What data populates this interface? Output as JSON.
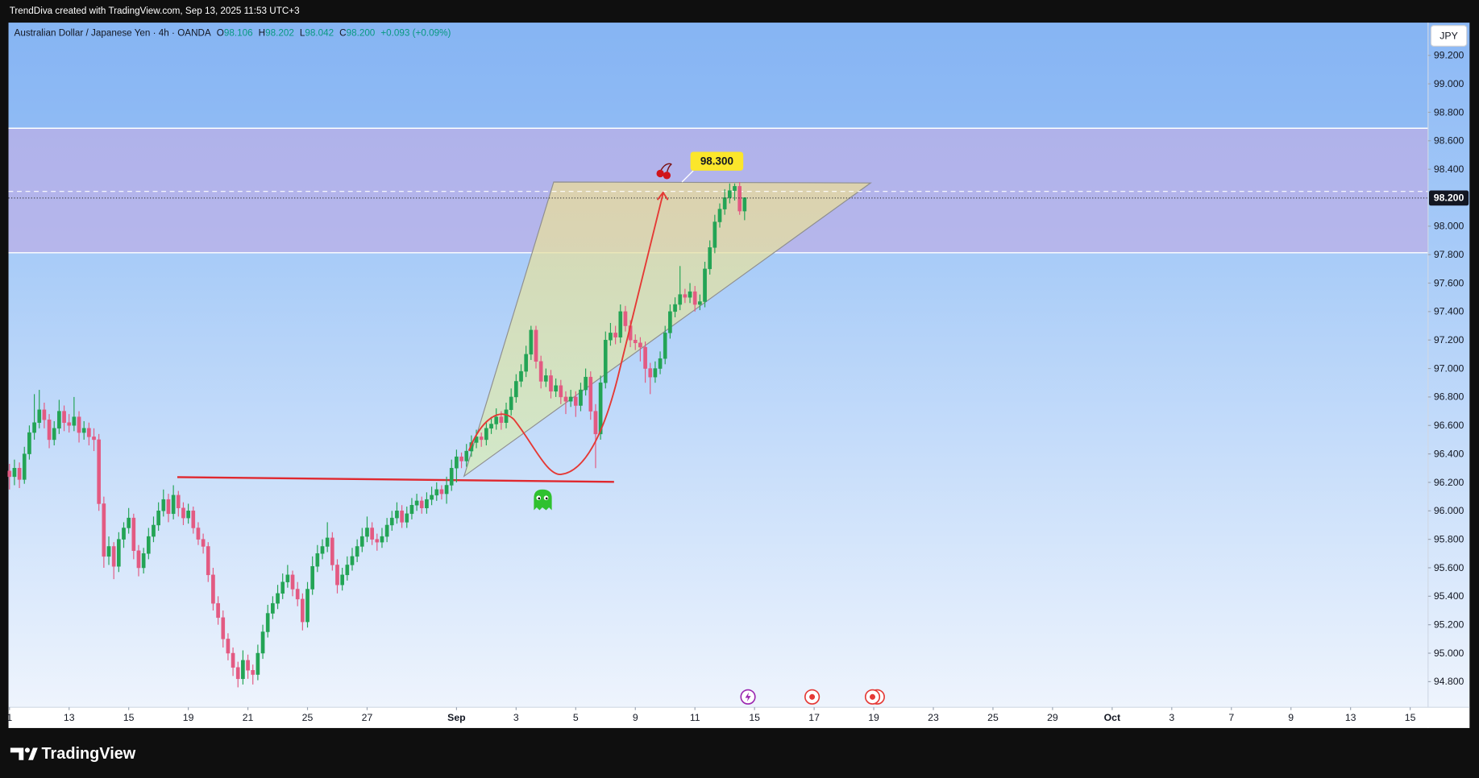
{
  "top_bar": {
    "caption": "TrendDiva created with TradingView.com, Sep 13, 2025 11:53 UTC+3"
  },
  "chart_data": {
    "type": "candlestick",
    "symbol": "Australian Dollar / Japanese Yen · 4h · OANDA",
    "legend_items": [
      {
        "key": "O",
        "value": "98.106"
      },
      {
        "key": "H",
        "value": "98.202"
      },
      {
        "key": "L",
        "value": "98.042"
      },
      {
        "key": "C",
        "value": "98.200"
      }
    ],
    "change": "+0.093 (+0.09%)",
    "currency": "JPY",
    "last_price_label": "98.200",
    "annotation_label": "98.300",
    "up_color": "#23a455",
    "down_color": "#e35a82",
    "ylim": [
      94.62,
      99.43
    ],
    "yticks": [
      {
        "value": 94.8,
        "label": "94.800"
      },
      {
        "value": 95.0,
        "label": "95.000"
      },
      {
        "value": 95.2,
        "label": "95.200"
      },
      {
        "value": 95.4,
        "label": "95.400"
      },
      {
        "value": 95.6,
        "label": "95.600"
      },
      {
        "value": 95.8,
        "label": "95.800"
      },
      {
        "value": 96.0,
        "label": "96.000"
      },
      {
        "value": 96.2,
        "label": "96.200"
      },
      {
        "value": 96.4,
        "label": "96.400"
      },
      {
        "value": 96.6,
        "label": "96.600"
      },
      {
        "value": 96.8,
        "label": "96.800"
      },
      {
        "value": 97.0,
        "label": "97.000"
      },
      {
        "value": 97.2,
        "label": "97.200"
      },
      {
        "value": 97.4,
        "label": "97.400"
      },
      {
        "value": 97.6,
        "label": "97.600"
      },
      {
        "value": 97.8,
        "label": "97.800"
      },
      {
        "value": 98.0,
        "label": "98.000"
      },
      {
        "value": 98.4,
        "label": "98.400"
      },
      {
        "value": 98.6,
        "label": "98.600"
      },
      {
        "value": 98.8,
        "label": "98.800"
      },
      {
        "value": 99.0,
        "label": "99.000"
      },
      {
        "value": 99.2,
        "label": "99.200"
      }
    ],
    "xlim": [
      -0.2,
      285.6
    ],
    "xticks": [
      {
        "value": 0,
        "label": "1"
      },
      {
        "value": 12,
        "label": "13"
      },
      {
        "value": 24,
        "label": "15"
      },
      {
        "value": 36,
        "label": "19"
      },
      {
        "value": 48,
        "label": "21"
      },
      {
        "value": 60,
        "label": "25"
      },
      {
        "value": 72,
        "label": "27"
      },
      {
        "value": 90,
        "label": "Sep"
      },
      {
        "value": 102,
        "label": "3"
      },
      {
        "value": 114,
        "label": "5"
      },
      {
        "value": 126,
        "label": "9"
      },
      {
        "value": 138,
        "label": "11"
      },
      {
        "value": 150,
        "label": "15"
      },
      {
        "value": 162,
        "label": "17"
      },
      {
        "value": 174,
        "label": "19"
      },
      {
        "value": 186,
        "label": "23"
      },
      {
        "value": 198,
        "label": "25"
      },
      {
        "value": 210,
        "label": "29"
      },
      {
        "value": 222,
        "label": "Oct"
      },
      {
        "value": 234,
        "label": "3"
      },
      {
        "value": 246,
        "label": "7"
      },
      {
        "value": 258,
        "label": "9"
      },
      {
        "value": 270,
        "label": "13"
      },
      {
        "value": 282,
        "label": "15"
      }
    ],
    "ohlc": [
      [
        96.28,
        96.33,
        96.15,
        96.24
      ],
      [
        96.24,
        96.36,
        96.18,
        96.3
      ],
      [
        96.3,
        96.34,
        96.16,
        96.22
      ],
      [
        96.22,
        96.45,
        96.19,
        96.4
      ],
      [
        96.4,
        96.6,
        96.36,
        96.55
      ],
      [
        96.55,
        96.82,
        96.5,
        96.62
      ],
      [
        96.62,
        96.85,
        96.58,
        96.71
      ],
      [
        96.71,
        96.76,
        96.58,
        96.64
      ],
      [
        96.64,
        96.68,
        96.44,
        96.5
      ],
      [
        96.5,
        96.63,
        96.46,
        96.58
      ],
      [
        96.58,
        96.78,
        96.54,
        96.7
      ],
      [
        96.7,
        96.74,
        96.56,
        96.62
      ],
      [
        96.62,
        96.68,
        96.55,
        96.6
      ],
      [
        96.6,
        96.8,
        96.56,
        96.66
      ],
      [
        96.66,
        96.7,
        96.48,
        96.55
      ],
      [
        96.55,
        96.63,
        96.5,
        96.58
      ],
      [
        96.58,
        96.62,
        96.46,
        96.52
      ],
      [
        96.52,
        96.58,
        96.42,
        96.5
      ],
      [
        96.5,
        96.54,
        96.0,
        96.05
      ],
      [
        96.05,
        96.1,
        95.6,
        95.68
      ],
      [
        95.68,
        95.82,
        95.62,
        95.75
      ],
      [
        95.75,
        95.78,
        95.52,
        95.61
      ],
      [
        95.61,
        95.85,
        95.57,
        95.8
      ],
      [
        95.8,
        95.92,
        95.74,
        95.88
      ],
      [
        95.88,
        96.02,
        95.84,
        95.95
      ],
      [
        95.95,
        95.98,
        95.66,
        95.72
      ],
      [
        95.72,
        95.76,
        95.54,
        95.6
      ],
      [
        95.6,
        95.74,
        95.56,
        95.7
      ],
      [
        95.7,
        95.88,
        95.66,
        95.82
      ],
      [
        95.82,
        95.96,
        95.78,
        95.9
      ],
      [
        95.9,
        96.06,
        95.86,
        96.0
      ],
      [
        96.0,
        96.15,
        95.96,
        96.08
      ],
      [
        96.08,
        96.12,
        95.92,
        95.98
      ],
      [
        95.98,
        96.18,
        95.94,
        96.11
      ],
      [
        96.11,
        96.14,
        95.96,
        96.02
      ],
      [
        96.02,
        96.06,
        95.9,
        95.95
      ],
      [
        95.95,
        96.05,
        95.91,
        96.0
      ],
      [
        96.0,
        96.03,
        95.84,
        95.88
      ],
      [
        95.88,
        95.92,
        95.76,
        95.8
      ],
      [
        95.8,
        95.84,
        95.7,
        95.75
      ],
      [
        95.75,
        95.78,
        95.5,
        95.55
      ],
      [
        95.55,
        95.6,
        95.3,
        95.35
      ],
      [
        95.35,
        95.4,
        95.2,
        95.25
      ],
      [
        95.25,
        95.3,
        95.04,
        95.1
      ],
      [
        95.1,
        95.14,
        94.95,
        95.0
      ],
      [
        95.0,
        95.04,
        94.84,
        94.9
      ],
      [
        94.9,
        94.94,
        94.76,
        94.82
      ],
      [
        94.82,
        95.02,
        94.78,
        94.95
      ],
      [
        94.95,
        94.99,
        94.82,
        94.88
      ],
      [
        94.88,
        94.92,
        94.78,
        94.85
      ],
      [
        94.85,
        95.06,
        94.81,
        95.0
      ],
      [
        95.0,
        95.2,
        94.96,
        95.15
      ],
      [
        95.15,
        95.34,
        95.11,
        95.28
      ],
      [
        95.28,
        95.4,
        95.24,
        95.35
      ],
      [
        95.35,
        95.48,
        95.31,
        95.42
      ],
      [
        95.42,
        95.56,
        95.38,
        95.5
      ],
      [
        95.5,
        95.62,
        95.46,
        95.55
      ],
      [
        95.55,
        95.58,
        95.4,
        95.45
      ],
      [
        95.45,
        95.5,
        95.33,
        95.38
      ],
      [
        95.38,
        95.42,
        95.16,
        95.22
      ],
      [
        95.22,
        95.5,
        95.18,
        95.45
      ],
      [
        95.45,
        95.68,
        95.41,
        95.61
      ],
      [
        95.61,
        95.76,
        95.57,
        95.7
      ],
      [
        95.7,
        95.8,
        95.66,
        95.75
      ],
      [
        95.75,
        95.92,
        95.71,
        95.81
      ],
      [
        95.81,
        95.85,
        95.58,
        95.62
      ],
      [
        95.62,
        95.66,
        95.42,
        95.48
      ],
      [
        95.48,
        95.6,
        95.44,
        95.55
      ],
      [
        95.55,
        95.68,
        95.51,
        95.62
      ],
      [
        95.62,
        95.74,
        95.58,
        95.68
      ],
      [
        95.68,
        95.8,
        95.64,
        95.75
      ],
      [
        95.75,
        95.88,
        95.71,
        95.82
      ],
      [
        95.82,
        95.96,
        95.78,
        95.88
      ],
      [
        95.88,
        95.92,
        95.76,
        95.8
      ],
      [
        95.8,
        95.84,
        95.72,
        95.78
      ],
      [
        95.78,
        95.88,
        95.74,
        95.82
      ],
      [
        95.82,
        95.95,
        95.78,
        95.9
      ],
      [
        95.9,
        96.0,
        95.86,
        95.95
      ],
      [
        95.95,
        96.06,
        95.91,
        96.0
      ],
      [
        96.0,
        96.04,
        95.88,
        95.92
      ],
      [
        95.92,
        96.03,
        95.88,
        95.98
      ],
      [
        95.98,
        96.09,
        95.94,
        96.04
      ],
      [
        96.04,
        96.12,
        96.0,
        96.07
      ],
      [
        96.07,
        96.1,
        95.98,
        96.02
      ],
      [
        96.02,
        96.13,
        95.98,
        96.08
      ],
      [
        96.08,
        96.17,
        96.04,
        96.11
      ],
      [
        96.11,
        96.2,
        96.07,
        96.15
      ],
      [
        96.15,
        96.18,
        96.08,
        96.12
      ],
      [
        96.12,
        96.24,
        96.05,
        96.18
      ],
      [
        96.18,
        96.36,
        96.14,
        96.3
      ],
      [
        96.3,
        96.43,
        96.2,
        96.38
      ],
      [
        96.38,
        96.41,
        96.3,
        96.35
      ],
      [
        96.35,
        96.47,
        96.31,
        96.42
      ],
      [
        96.42,
        96.53,
        96.38,
        96.48
      ],
      [
        96.48,
        96.57,
        96.44,
        96.52
      ],
      [
        96.52,
        96.55,
        96.45,
        96.5
      ],
      [
        96.5,
        96.63,
        96.46,
        96.58
      ],
      [
        96.58,
        96.66,
        96.54,
        96.61
      ],
      [
        96.61,
        96.72,
        96.57,
        96.66
      ],
      [
        96.66,
        96.7,
        96.57,
        96.62
      ],
      [
        96.62,
        96.76,
        96.58,
        96.71
      ],
      [
        96.71,
        96.86,
        96.67,
        96.8
      ],
      [
        96.8,
        96.96,
        96.76,
        96.91
      ],
      [
        96.91,
        97.03,
        96.87,
        96.98
      ],
      [
        96.98,
        97.16,
        96.94,
        97.1
      ],
      [
        97.1,
        97.3,
        97.06,
        97.27
      ],
      [
        97.27,
        97.3,
        97.0,
        97.05
      ],
      [
        97.05,
        97.09,
        96.86,
        96.91
      ],
      [
        96.91,
        97.0,
        96.87,
        96.95
      ],
      [
        96.95,
        96.99,
        96.79,
        96.84
      ],
      [
        96.84,
        96.93,
        96.8,
        96.88
      ],
      [
        96.88,
        96.92,
        96.75,
        96.8
      ],
      [
        96.8,
        96.84,
        96.68,
        96.77
      ],
      [
        96.77,
        96.85,
        96.73,
        96.8
      ],
      [
        96.8,
        96.84,
        96.66,
        96.74
      ],
      [
        96.74,
        96.9,
        96.7,
        96.85
      ],
      [
        96.85,
        97.0,
        96.81,
        96.94
      ],
      [
        96.94,
        96.98,
        96.64,
        96.7
      ],
      [
        96.7,
        96.75,
        96.3,
        96.54
      ],
      [
        96.54,
        96.95,
        96.5,
        96.9
      ],
      [
        96.9,
        97.26,
        96.86,
        97.2
      ],
      [
        97.2,
        97.32,
        97.16,
        97.25
      ],
      [
        97.25,
        97.3,
        97.17,
        97.22
      ],
      [
        97.22,
        97.45,
        97.18,
        97.4
      ],
      [
        97.4,
        97.44,
        97.26,
        97.3
      ],
      [
        97.3,
        97.34,
        97.15,
        97.2
      ],
      [
        97.2,
        97.24,
        97.13,
        97.18
      ],
      [
        97.18,
        97.22,
        97.05,
        97.15
      ],
      [
        97.15,
        97.19,
        96.9,
        97.0
      ],
      [
        97.0,
        97.04,
        96.82,
        96.94
      ],
      [
        96.94,
        97.05,
        96.9,
        97.0
      ],
      [
        97.0,
        97.12,
        96.96,
        97.07
      ],
      [
        97.07,
        97.3,
        97.03,
        97.25
      ],
      [
        97.25,
        97.45,
        97.21,
        97.4
      ],
      [
        97.4,
        97.5,
        97.36,
        97.45
      ],
      [
        97.45,
        97.72,
        97.41,
        97.52
      ],
      [
        97.52,
        97.56,
        97.46,
        97.5
      ],
      [
        97.5,
        97.6,
        97.46,
        97.54
      ],
      [
        97.54,
        97.58,
        97.4,
        97.45
      ],
      [
        97.45,
        97.52,
        97.41,
        97.47
      ],
      [
        97.47,
        97.75,
        97.43,
        97.7
      ],
      [
        97.7,
        97.9,
        97.66,
        97.85
      ],
      [
        97.85,
        98.08,
        97.81,
        98.03
      ],
      [
        98.03,
        98.16,
        97.99,
        98.12
      ],
      [
        98.12,
        98.26,
        98.08,
        98.2
      ],
      [
        98.2,
        98.3,
        98.16,
        98.25
      ],
      [
        98.25,
        98.3,
        98.18,
        98.28
      ],
      [
        98.28,
        98.31,
        98.08,
        98.106
      ],
      [
        98.106,
        98.202,
        98.042,
        98.2
      ]
    ]
  },
  "footer": {
    "brand": "TradingView"
  }
}
